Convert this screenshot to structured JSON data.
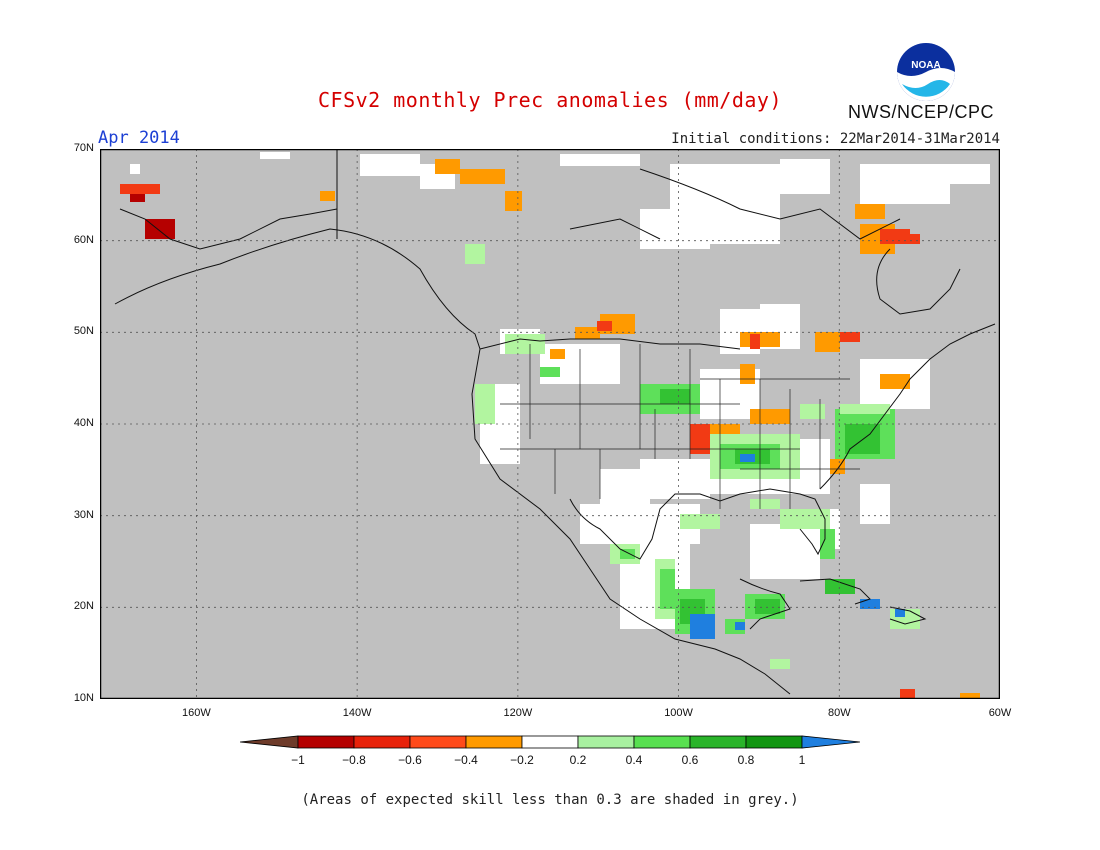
{
  "header": {
    "title": "CFSv2 monthly Prec anomalies (mm/day)",
    "month": "Apr 2014",
    "initial_conditions": "Initial conditions: 22Mar2014-31Mar2014",
    "agency": "NWS/NCEP/CPC",
    "logo_text": "NOAA"
  },
  "map": {
    "lon_range": [
      -172,
      -60
    ],
    "lat_range": [
      10,
      70
    ],
    "lat_labels": [
      "70N",
      "60N",
      "50N",
      "40N",
      "30N",
      "20N",
      "10N"
    ],
    "lon_labels": [
      "160W",
      "140W",
      "120W",
      "100W",
      "80W",
      "60W"
    ],
    "colors": {
      "low_skill": "#c0c0c0",
      "neutral": "#ffffff",
      "neg_1": "#6e3b2a",
      "neg_08": "#b50000",
      "neg_06": "#f23a14",
      "neg_04": "#ff5a1e",
      "neg_02": "#ff9a00",
      "pos_02": "#b2f5a0",
      "pos_04": "#5ee05a",
      "pos_06": "#33c233",
      "pos_08": "#189818",
      "pos_1": "#1f7fdf"
    }
  },
  "legend": {
    "ticks": [
      "−1",
      "−0.8",
      "−0.6",
      "−0.4",
      "−0.2",
      "0.2",
      "0.4",
      "0.6",
      "0.8",
      "1"
    ],
    "colors": [
      "#6e3b2a",
      "#b50000",
      "#e8220a",
      "#ff4a1a",
      "#ff9a00",
      "#ffffff",
      "#a8f0a0",
      "#58e050",
      "#2ab42a",
      "#129612",
      "#1f7fdf"
    ]
  },
  "footnote": "(Areas of expected skill less than 0.3 are shaded in grey.)"
}
